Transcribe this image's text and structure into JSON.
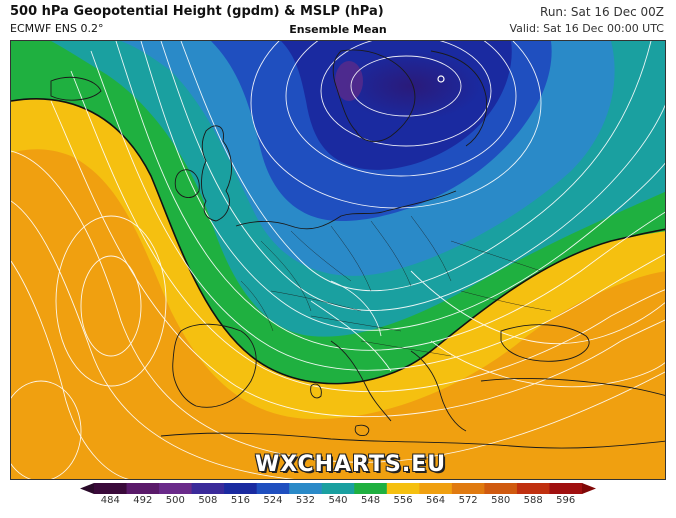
{
  "header": {
    "title": "500 hPa Geopotential Height (gpdm) & MSLP (hPa)",
    "model": "ECMWF ENS 0.2°",
    "product": "Ensemble Mean",
    "run": "Run: Sat 16 Dec 00Z",
    "valid": "Valid: Sat 16 Dec 00:00 UTC"
  },
  "watermark": "WXCHARTS.EU",
  "legend": {
    "ticks": [
      "484",
      "492",
      "500",
      "508",
      "516",
      "524",
      "532",
      "540",
      "548",
      "556",
      "564",
      "572",
      "580",
      "588",
      "596"
    ],
    "colors": [
      "#3a0a3a",
      "#5a1a6a",
      "#6a2a8a",
      "#3a2a9a",
      "#1a2aa0",
      "#1f4fbf",
      "#2a8ac8",
      "#1aa0a0",
      "#1fb040",
      "#f5c010",
      "#f0a010",
      "#e07a10",
      "#d05a10",
      "#c03010",
      "#a01010"
    ]
  },
  "map": {
    "region": "Europe",
    "features": [
      "geopotential-height-shading",
      "mslp-isobars",
      "coastlines",
      "country-borders"
    ]
  }
}
